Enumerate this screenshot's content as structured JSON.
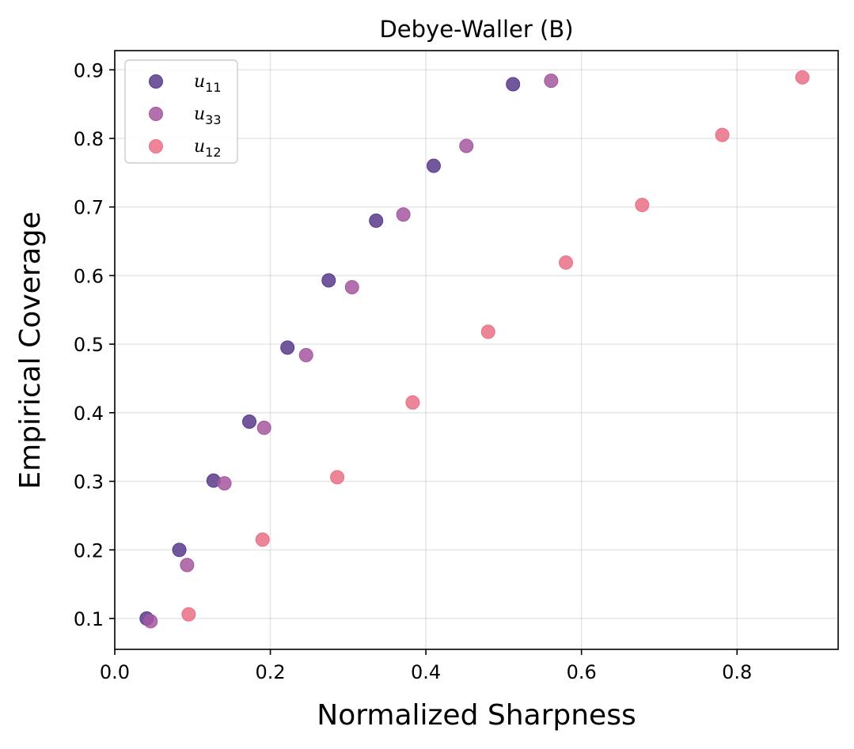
{
  "chart_data": {
    "type": "scatter",
    "title": "Debye-Waller (B)",
    "xlabel": "Normalized Sharpness",
    "ylabel": "Empirical Coverage",
    "xlim": [
      0.0,
      0.93
    ],
    "ylim": [
      0.055,
      0.928
    ],
    "xticks": [
      0.0,
      0.2,
      0.4,
      0.6,
      0.8
    ],
    "xtick_labels": [
      "0.0",
      "0.2",
      "0.4",
      "0.6",
      "0.8"
    ],
    "yticks": [
      0.1,
      0.2,
      0.3,
      0.4,
      0.5,
      0.6,
      0.7,
      0.8,
      0.9
    ],
    "ytick_labels": [
      "0.1",
      "0.2",
      "0.3",
      "0.4",
      "0.5",
      "0.6",
      "0.7",
      "0.8",
      "0.9"
    ],
    "grid": true,
    "legend_position": "top-left",
    "series": [
      {
        "name": "u11",
        "legend_base": "u",
        "legend_sub": "11",
        "color": "#5b3a8c",
        "x": [
          0.041,
          0.083,
          0.127,
          0.173,
          0.222,
          0.275,
          0.336,
          0.41,
          0.512
        ],
        "y": [
          0.1,
          0.2,
          0.301,
          0.387,
          0.495,
          0.593,
          0.68,
          0.76,
          0.879
        ]
      },
      {
        "name": "u33",
        "legend_base": "u",
        "legend_sub": "33",
        "color": "#a5579f",
        "x": [
          0.046,
          0.093,
          0.141,
          0.192,
          0.246,
          0.305,
          0.371,
          0.452,
          0.561
        ],
        "y": [
          0.096,
          0.178,
          0.297,
          0.378,
          0.484,
          0.583,
          0.689,
          0.789,
          0.884
        ]
      },
      {
        "name": "u12",
        "legend_base": "u",
        "legend_sub": "12",
        "color": "#ea7087",
        "x": [
          0.095,
          0.19,
          0.286,
          0.383,
          0.48,
          0.58,
          0.678,
          0.781,
          0.884
        ],
        "y": [
          0.106,
          0.215,
          0.306,
          0.415,
          0.518,
          0.619,
          0.703,
          0.805,
          0.889
        ]
      }
    ]
  }
}
